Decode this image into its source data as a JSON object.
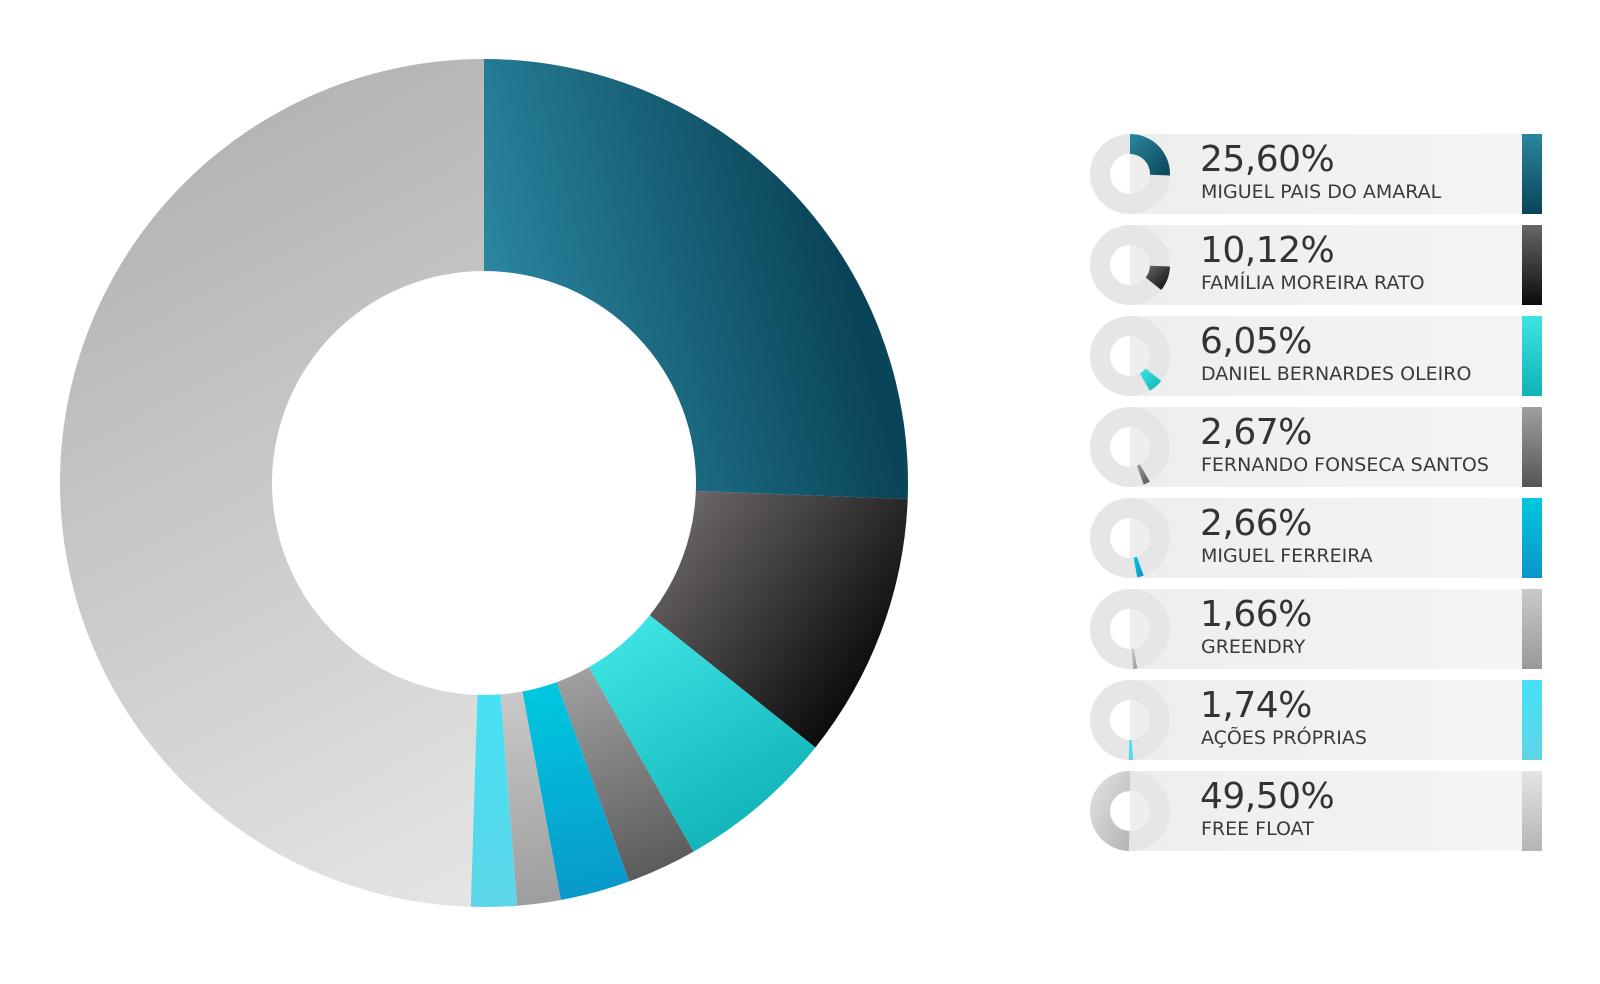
{
  "chart_data": {
    "type": "pie",
    "title": "",
    "hole": true,
    "slices": [
      {
        "label": "MIGUEL PAIS DO AMARAL",
        "value_text": "25,60%",
        "value": 25.6,
        "color_from": "#2a86a0",
        "color_to": "#0a4458"
      },
      {
        "label": "FAMÍLIA MOREIRA RATO",
        "value_text": "10,12%",
        "value": 10.12,
        "color_from": "#6b6668",
        "color_to": "#0a0a0a"
      },
      {
        "label": "DANIEL BERNARDES OLEIRO",
        "value_text": "6,05%",
        "value": 6.05,
        "color_from": "#3ee3e3",
        "color_to": "#0fb3b8"
      },
      {
        "label": "FERNANDO FONSECA SANTOS",
        "value_text": "2,67%",
        "value": 2.67,
        "color_from": "#a0a0a0",
        "color_to": "#555555"
      },
      {
        "label": "MIGUEL FERREIRA",
        "value_text": "2,66%",
        "value": 2.66,
        "color_from": "#00c8e0",
        "color_to": "#0a94c8"
      },
      {
        "label": "GREENDRY",
        "value_text": "1,66%",
        "value": 1.66,
        "color_from": "#c9c9c9",
        "color_to": "#999999"
      },
      {
        "label": "AÇÕES PRÓPRIAS",
        "value_text": "1,74%",
        "value": 1.74,
        "color_from": "#46e1f5",
        "color_to": "#5fd4e6"
      },
      {
        "label": "FREE FLOAT",
        "value_text": "49,50%",
        "value": 49.5,
        "color_from": "#e4e4e2",
        "color_to": "#b4b4b4"
      }
    ]
  }
}
